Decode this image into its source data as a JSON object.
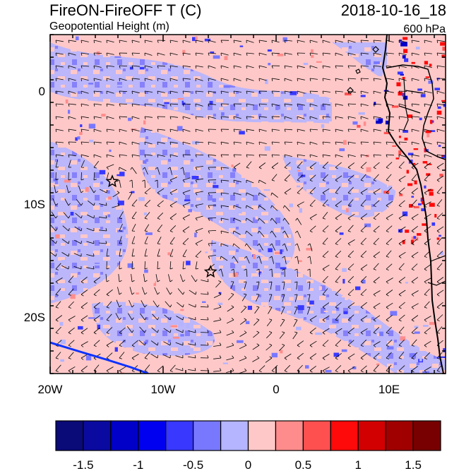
{
  "header": {
    "title": "FireON-FireOFF T (C)",
    "subtitle": "Geopotential Height (m)",
    "datetime": "2018-10-16_18",
    "level": "600 hPa"
  },
  "map": {
    "lon_range": [
      -20,
      15
    ],
    "lat_range": [
      -25,
      5
    ],
    "x_ticks": [
      {
        "value": -20,
        "label": "20W"
      },
      {
        "value": -10,
        "label": "10W"
      },
      {
        "value": 0,
        "label": "0"
      },
      {
        "value": 10,
        "label": "10E"
      }
    ],
    "y_ticks": [
      {
        "value": 0,
        "label": "0"
      },
      {
        "value": -10,
        "label": "10S"
      },
      {
        "value": -20,
        "label": "20S"
      }
    ],
    "markers": [
      {
        "name": "star-marker-1",
        "lon": -14.5,
        "lat": -8.0
      },
      {
        "name": "star-marker-2",
        "lon": -5.8,
        "lat": -16.0
      }
    ]
  },
  "colorbar": {
    "colors": [
      "#0a0a78",
      "#0a0aa0",
      "#0000c8",
      "#0000f0",
      "#3838ff",
      "#7878ff",
      "#b4b4ff",
      "#ffc8c8",
      "#ff8c8c",
      "#ff5050",
      "#ff0a0a",
      "#d20000",
      "#a00000",
      "#780000"
    ],
    "labels": [
      {
        "value": -1.5,
        "text": "-1.5"
      },
      {
        "value": -1,
        "text": "-1"
      },
      {
        "value": -0.5,
        "text": "-0.5"
      },
      {
        "value": 0,
        "text": "0"
      },
      {
        "value": 0.5,
        "text": "0.5"
      },
      {
        "value": 1,
        "text": "1"
      },
      {
        "value": 1.5,
        "text": "1.5"
      }
    ]
  }
}
